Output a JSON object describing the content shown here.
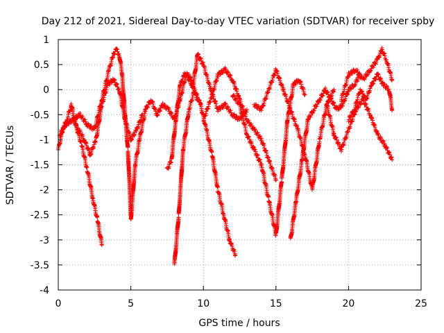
{
  "chart_data": {
    "type": "scatter",
    "title": "Day 212 of 2021, Sidereal Day-to-day VTEC variation (SDTVAR) for receiver spby",
    "xlabel": "GPS time / hours",
    "ylabel": "SDTVAR / TECUs",
    "xlim": [
      0,
      25
    ],
    "ylim": [
      -4,
      1
    ],
    "xticks": [
      0,
      5,
      10,
      15,
      20,
      25
    ],
    "xtick_labels": [
      "0",
      "5",
      "10",
      "15",
      "20",
      "25"
    ],
    "yticks": [
      1,
      0.5,
      0,
      -0.5,
      -1,
      -1.5,
      -2,
      -2.5,
      -3,
      -3.5,
      -4
    ],
    "ytick_labels": [
      "1",
      "0.5",
      "0",
      "-0.5",
      "-1",
      "-1.5",
      "-2",
      "-2.5",
      "-3",
      "-3.5",
      "-4"
    ],
    "grid": true,
    "marker": "+",
    "color": "#ff0000",
    "series": [
      {
        "name": "s1",
        "x": [
          0,
          0.3,
          0.6,
          0.9,
          1.2,
          1.6,
          2.0,
          2.4,
          2.7,
          3.0
        ],
        "y": [
          -1.2,
          -0.8,
          -0.6,
          -0.3,
          -0.7,
          -1.1,
          -1.6,
          -2.2,
          -2.6,
          -3.1
        ]
      },
      {
        "name": "s2",
        "x": [
          0.1,
          0.5,
          1.0,
          1.5,
          2.0,
          2.5,
          3.0,
          3.5,
          3.8,
          4.0,
          4.2,
          4.4,
          4.6,
          4.8,
          5.0
        ],
        "y": [
          -0.9,
          -0.7,
          -0.6,
          -0.5,
          -0.7,
          -0.8,
          -0.2,
          0.4,
          0.7,
          0.8,
          0.7,
          0.3,
          -0.5,
          -1.2,
          -2.5
        ]
      },
      {
        "name": "s3",
        "x": [
          1.0,
          1.4,
          1.8,
          2.2,
          2.6,
          3.0,
          3.4,
          3.8,
          4.2,
          4.6,
          5.0,
          5.4,
          5.8
        ],
        "y": [
          -0.6,
          -0.8,
          -1.0,
          -1.3,
          -1.0,
          -0.3,
          0.1,
          0.2,
          0.0,
          -0.6,
          -1.0,
          -0.8,
          -0.5
        ]
      },
      {
        "name": "s4",
        "x": [
          5.0,
          5.3,
          5.6,
          6.0,
          6.4,
          6.8,
          7.2,
          7.6,
          8.0,
          8.4,
          8.8,
          9.2,
          9.6
        ],
        "y": [
          -2.6,
          -1.5,
          -1.0,
          -0.4,
          -0.2,
          -0.5,
          -0.3,
          -0.4,
          -0.6,
          -0.2,
          0.3,
          0.1,
          -0.2
        ]
      },
      {
        "name": "s5",
        "x": [
          7.5,
          7.8,
          8.1,
          8.4,
          8.7,
          9.0,
          9.3,
          9.6,
          10.0,
          10.5,
          11.0,
          11.5,
          12.0,
          12.5,
          13.0
        ],
        "y": [
          -1.6,
          -1.4,
          -0.6,
          0.1,
          0.3,
          0.3,
          0.1,
          0.7,
          0.5,
          0.0,
          -0.4,
          -0.3,
          -0.5,
          -0.6,
          -0.4
        ]
      },
      {
        "name": "s6",
        "x": [
          8.0,
          8.3,
          8.6,
          9.0,
          9.4,
          9.8,
          10.2,
          10.6,
          11.0,
          11.4,
          11.8,
          12.2
        ],
        "y": [
          -3.5,
          -2.5,
          -1.2,
          -0.4,
          0.0,
          -0.3,
          -0.8,
          -1.3,
          -2.0,
          -2.5,
          -3.0,
          -3.3
        ]
      },
      {
        "name": "s7",
        "x": [
          10.0,
          10.5,
          11.0,
          11.5,
          12.0,
          12.5,
          13.0,
          13.5,
          14.0,
          14.5,
          15.0
        ],
        "y": [
          -0.6,
          -0.2,
          0.3,
          0.4,
          0.2,
          -0.2,
          -0.6,
          -0.8,
          -1.0,
          -1.4,
          -1.8
        ]
      },
      {
        "name": "s8",
        "x": [
          12.0,
          12.5,
          13.0,
          13.5,
          14.0,
          14.5,
          15.0,
          15.4,
          15.8,
          16.2,
          16.6,
          17.0
        ],
        "y": [
          -0.1,
          -0.3,
          -0.9,
          -1.2,
          -1.5,
          -2.2,
          -2.9,
          -1.8,
          -0.6,
          0.1,
          0.2,
          -0.1
        ]
      },
      {
        "name": "s9",
        "x": [
          13.5,
          14.0,
          14.5,
          15.0,
          15.5,
          16.0,
          16.5,
          17.0,
          17.5,
          18.0,
          18.5,
          19.0
        ],
        "y": [
          -0.3,
          -0.4,
          0.0,
          0.4,
          0.0,
          -0.4,
          -0.8,
          -1.3,
          -2.0,
          -1.0,
          -0.3,
          0.0
        ]
      },
      {
        "name": "s10",
        "x": [
          16.0,
          16.4,
          16.8,
          17.2,
          17.6,
          18.0,
          18.4,
          18.8,
          19.2,
          19.6,
          20.0,
          20.4,
          20.8
        ],
        "y": [
          -3.0,
          -2.2,
          -1.4,
          -0.6,
          -0.4,
          -0.2,
          0.0,
          -0.2,
          -0.4,
          -0.3,
          0.0,
          0.1,
          0.3
        ]
      },
      {
        "name": "s11",
        "x": [
          18.5,
          19.0,
          19.5,
          20.0,
          20.5,
          21.0,
          21.5,
          22.0,
          22.5,
          23.0
        ],
        "y": [
          -0.3,
          -0.9,
          -1.2,
          -0.8,
          -0.4,
          -0.2,
          -0.5,
          -0.9,
          -1.1,
          -1.4
        ]
      },
      {
        "name": "s12",
        "x": [
          19.5,
          20.0,
          20.5,
          21.0,
          21.5,
          22.0,
          22.3,
          22.6,
          23.0
        ],
        "y": [
          -0.2,
          0.3,
          0.4,
          0.2,
          0.4,
          0.6,
          0.8,
          0.6,
          0.2
        ]
      },
      {
        "name": "s13",
        "x": [
          20.0,
          20.4,
          20.8,
          21.2,
          21.6,
          22.0,
          22.4,
          22.8,
          23.0
        ],
        "y": [
          -0.6,
          -0.4,
          0.0,
          -0.2,
          0.1,
          0.3,
          0.1,
          0.0,
          -0.4
        ]
      }
    ]
  }
}
